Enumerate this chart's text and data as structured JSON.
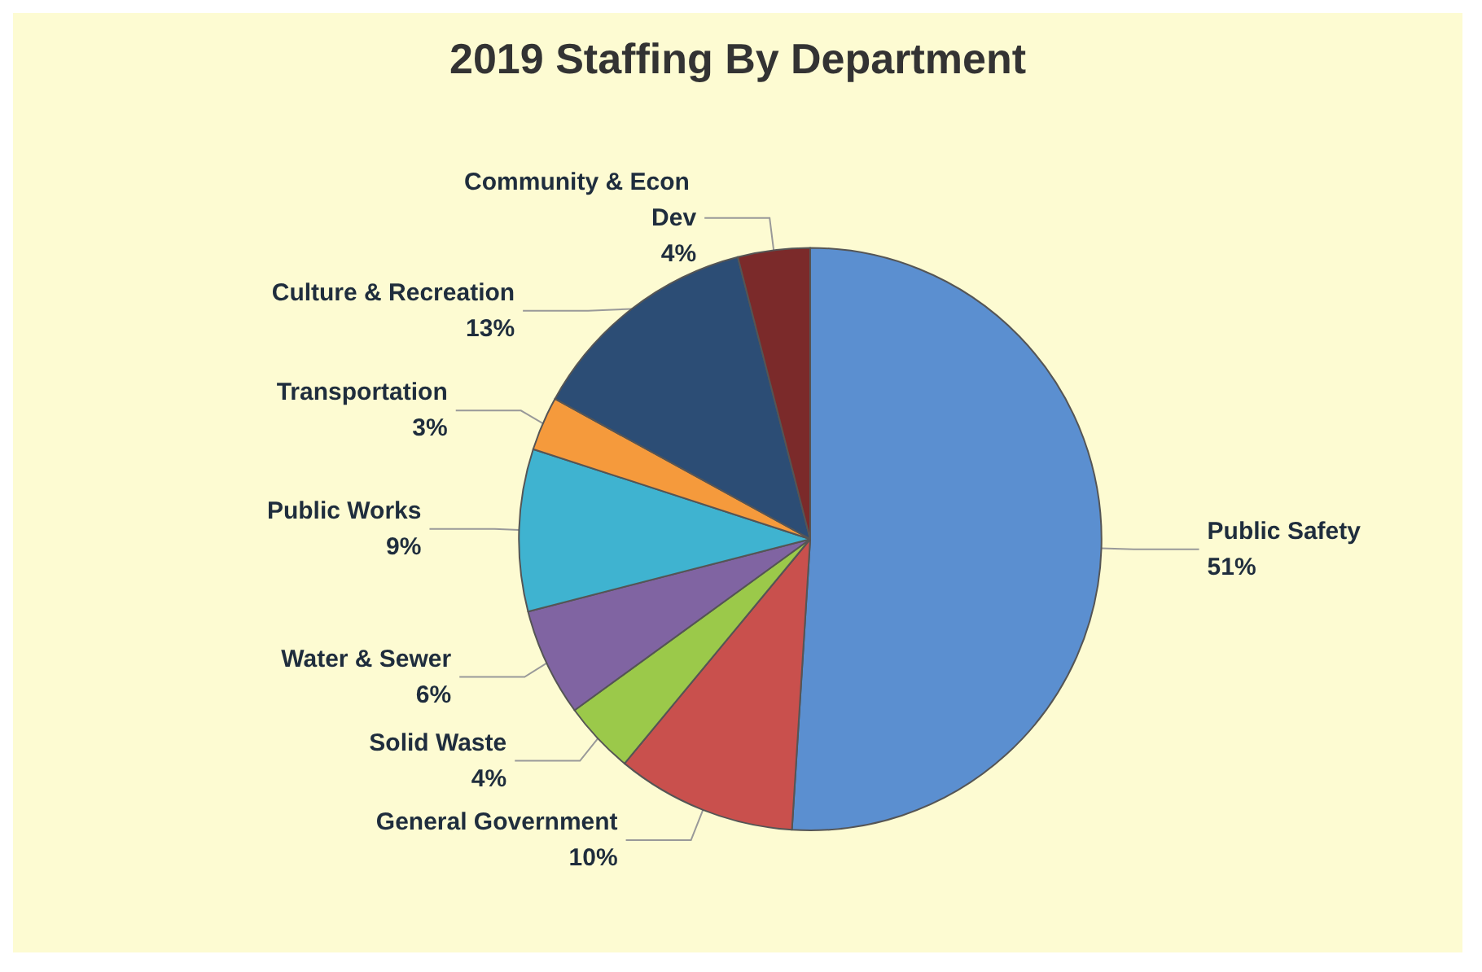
{
  "chart_data": {
    "type": "pie",
    "title": "2019 Staffing By Department",
    "categories": [
      "Public Safety",
      "General Government",
      "Solid Waste",
      "Water & Sewer",
      "Public Works",
      "Transportation",
      "Culture & Recreation",
      "Community & Econ Dev"
    ],
    "values": [
      51,
      10,
      4,
      6,
      9,
      3,
      13,
      4
    ],
    "value_labels": [
      "51%",
      "10%",
      "4%",
      "6%",
      "9%",
      "3%",
      "13%",
      "4%"
    ],
    "colors": [
      "#5b8fd0",
      "#c9504d",
      "#9bc94a",
      "#8064a2",
      "#3fb3d0",
      "#f59a3c",
      "#2c4d75",
      "#7b2a2a"
    ],
    "legend": false
  }
}
